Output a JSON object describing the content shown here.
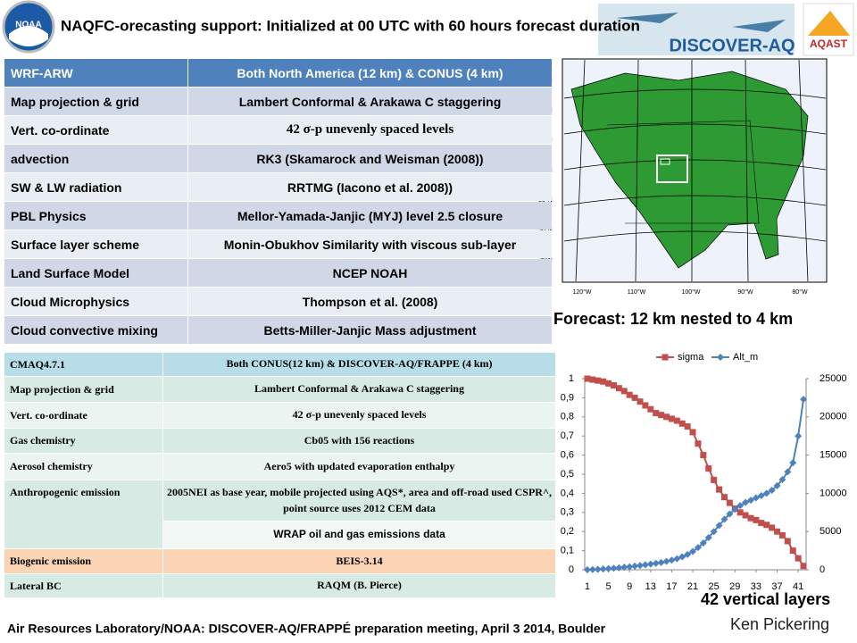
{
  "header": {
    "title": "NAQFC-orecasting support: Initialized at 00 UTC with 60 hours forecast duration",
    "logos": [
      "NOAA",
      "DISCOVER-AQ",
      "AQAST"
    ]
  },
  "wrf_table": {
    "rows": [
      [
        "WRF-ARW",
        "Both North America (12 km) & CONUS (4 km)"
      ],
      [
        "Map projection & grid",
        "Lambert Conformal & Arakawa C staggering"
      ],
      [
        "Vert. co-ordinate",
        "42 σ-p unevenly spaced levels"
      ],
      [
        "advection",
        "RK3 (Skamarock and Weisman (2008))"
      ],
      [
        "SW & LW radiation",
        "RRTMG (Iacono et al. 2008))"
      ],
      [
        "PBL Physics",
        "Mellor-Yamada-Janjic (MYJ) level 2.5 closure"
      ],
      [
        "Surface layer scheme",
        "Monin-Obukhov Similarity with viscous sub-layer"
      ],
      [
        "Land Surface Model",
        "NCEP NOAH"
      ],
      [
        "Cloud Microphysics",
        "Thompson et al. (2008)"
      ],
      [
        "Cloud convective mixing",
        "Betts-Miller-Janjic Mass adjustment"
      ]
    ]
  },
  "map": {
    "lat_labels": [
      "55°N",
      "50°N",
      "45°N",
      "40°N",
      "35°N",
      "30°N",
      "25°N"
    ],
    "lon_labels": [
      "120°W",
      "110°W",
      "100°W",
      "90°W",
      "80°W"
    ],
    "caption": "Forecast:  12 km nested to 4 km"
  },
  "cmaq_table": {
    "rows": [
      {
        "label": "CMAQ4.7.1",
        "values": [
          "Both CONUS(12 km) & DISCOVER-AQ/FRAPPE (4 km)"
        ]
      },
      {
        "label": "Map projection & grid",
        "values": [
          "Lambert Conformal & Arakawa C staggering"
        ]
      },
      {
        "label": "Vert. co-ordinate",
        "values": [
          "42 σ-p unevenly spaced levels"
        ]
      },
      {
        "label": "Gas chemistry",
        "values": [
          "Cb05 with 156 reactions"
        ]
      },
      {
        "label": "Aerosol chemistry",
        "values": [
          "Aero5 with updated evaporation enthalpy"
        ]
      },
      {
        "label": "Anthropogenic emission",
        "values": [
          "2005NEI as base year, mobile projected using AQS*, area and off-road used CSPR^, point source uses 2012 CEM data",
          "WRAP oil and gas emissions data"
        ]
      },
      {
        "label": "Biogenic emission",
        "values": [
          "BEIS-3.14"
        ]
      },
      {
        "label": "Lateral BC",
        "values": [
          "RAQM (B. Pierce)"
        ]
      }
    ]
  },
  "chart_data": {
    "type": "line",
    "x": [
      1,
      2,
      3,
      4,
      5,
      6,
      7,
      8,
      9,
      10,
      11,
      12,
      13,
      14,
      15,
      16,
      17,
      18,
      19,
      20,
      21,
      22,
      23,
      24,
      25,
      26,
      27,
      28,
      29,
      30,
      31,
      32,
      33,
      34,
      35,
      36,
      37,
      38,
      39,
      40,
      41,
      42
    ],
    "xlim": [
      0.5,
      42.5
    ],
    "xticks": [
      1,
      5,
      9,
      13,
      17,
      21,
      25,
      29,
      33,
      37,
      41
    ],
    "ylim": [
      0,
      1
    ],
    "yticks": [
      0,
      {
        "value": 0.1,
        "label": "0,1"
      },
      {
        "value": 0.2,
        "label": "0,2"
      },
      {
        "value": 0.3,
        "label": "0,3"
      },
      {
        "value": 0.4,
        "label": "0,4"
      },
      {
        "value": 0.5,
        "label": "0,5"
      },
      {
        "value": 0.6,
        "label": "0,6"
      },
      {
        "value": 0.7,
        "label": "0,7"
      },
      {
        "value": 0.8,
        "label": "0,8"
      },
      {
        "value": 0.9,
        "label": "0,9"
      },
      1
    ],
    "y2lim": [
      0,
      25000
    ],
    "y2ticks": [
      0,
      5000,
      10000,
      15000,
      20000,
      25000
    ],
    "series": [
      {
        "name": "sigma",
        "color": "#c0504d",
        "marker": "square",
        "values": [
          1,
          0.995,
          0.99,
          0.985,
          0.975,
          0.965,
          0.95,
          0.935,
          0.915,
          0.9,
          0.88,
          0.86,
          0.84,
          0.82,
          0.81,
          0.8,
          0.79,
          0.78,
          0.765,
          0.75,
          0.72,
          0.66,
          0.6,
          0.53,
          0.47,
          0.42,
          0.38,
          0.35,
          0.32,
          0.3,
          0.285,
          0.27,
          0.26,
          0.245,
          0.235,
          0.22,
          0.2,
          0.18,
          0.15,
          0.1,
          0.06,
          0.02
        ]
      },
      {
        "name": "Alt_m",
        "color": "#4f81bd",
        "marker": "diamond",
        "axis": "y2",
        "values": [
          0,
          30,
          60,
          100,
          150,
          200,
          260,
          330,
          400,
          480,
          560,
          650,
          750,
          850,
          950,
          1100,
          1250,
          1450,
          1700,
          2000,
          2400,
          2900,
          3500,
          4200,
          5000,
          5800,
          6600,
          7300,
          7900,
          8400,
          8800,
          9100,
          9400,
          9700,
          10000,
          10400,
          11000,
          11800,
          12800,
          14000,
          17500,
          22300
        ]
      }
    ],
    "legend": "top"
  },
  "footer": {
    "layers": "42 vertical layers",
    "author": "Ken Pickering",
    "meeting": "Air Resources Laboratory/NOAA: DISCOVER-AQ/FRAPPÉ preparation meeting, April 3 2014, Boulder"
  }
}
